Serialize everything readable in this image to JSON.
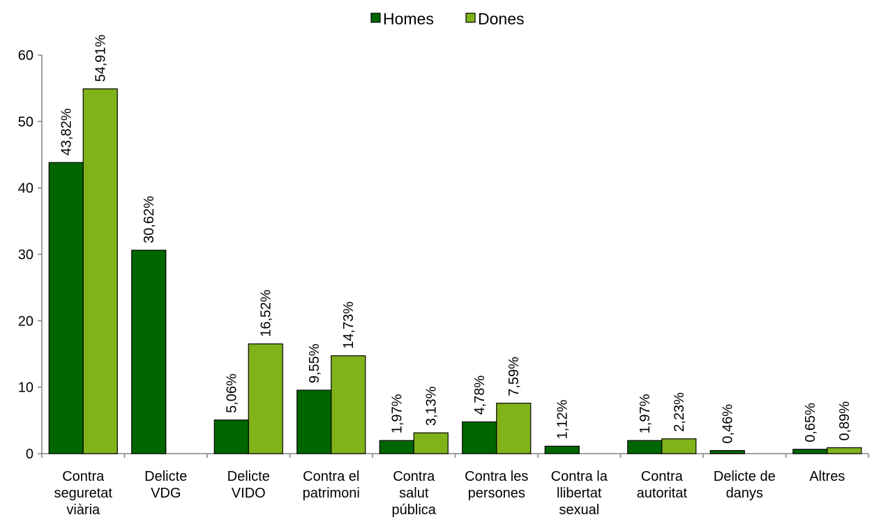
{
  "chart_data": {
    "type": "bar",
    "categories": [
      [
        "Contra",
        "seguretat",
        "viària"
      ],
      [
        "Delicte",
        "VDG"
      ],
      [
        "Delicte",
        "VIDO"
      ],
      [
        "Contra el",
        "patrimoni"
      ],
      [
        "Contra",
        "salut",
        "pública"
      ],
      [
        "Contra les",
        "persones"
      ],
      [
        "Contra la",
        "llibertat",
        "sexual"
      ],
      [
        "Contra",
        "autoritat"
      ],
      [
        "Delicte de",
        "danys"
      ],
      [
        "Altres"
      ]
    ],
    "series": [
      {
        "name": "Homes",
        "color": "#006600",
        "values": [
          43.82,
          30.62,
          5.06,
          9.55,
          1.97,
          4.78,
          1.12,
          1.97,
          0.46,
          0.65
        ],
        "labels": [
          "43,82%",
          "30,62%",
          "5,06%",
          "9,55%",
          "1,97%",
          "4,78%",
          "1,12%",
          "1,97%",
          "0,46%",
          "0,65%"
        ]
      },
      {
        "name": "Dones",
        "color": "#80b31a",
        "values": [
          54.91,
          null,
          16.52,
          14.73,
          3.13,
          7.59,
          null,
          2.23,
          null,
          0.89
        ],
        "labels": [
          "54,91%",
          "",
          "16,52%",
          "14,73%",
          "3,13%",
          "7,59%",
          "",
          "2,23%",
          "",
          "0,89%"
        ]
      }
    ],
    "ylim": [
      0,
      60
    ],
    "yticks": [
      "0",
      "10",
      "20",
      "30",
      "40",
      "50",
      "60"
    ],
    "grid": false,
    "legend_position": "top-center",
    "title": "",
    "xlabel": "",
    "ylabel": ""
  }
}
